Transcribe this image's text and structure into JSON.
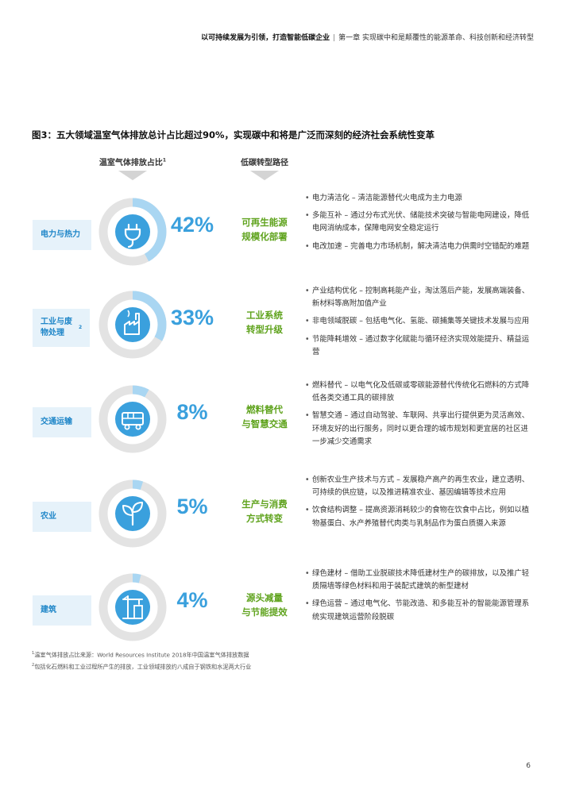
{
  "header": {
    "left": "以可持续发展为引领，打造智能低碳企业",
    "right": "第一章  实现碳中和是颠覆性的能源革命、科技创新和经济转型"
  },
  "figure_title": "图3：五大领域温室气体排放总计占比超过90%，实现碳中和将是广泛而深刻的经济社会系统性变革",
  "column_headers": {
    "share": "温室气体排放占比",
    "share_note": "1",
    "pathway": "低碳转型路径"
  },
  "rows": [
    {
      "sector": "电力与热力",
      "sector_note": "",
      "percent_label": "42%",
      "share": 42,
      "icon": "power-plug-icon",
      "pathway": [
        "可再生能源",
        "规模化部署"
      ],
      "bullets": [
        "电力清洁化 – 清洁能源替代火电成为主力电源",
        "多能互补 – 通过分布式光伏、储能技术突破与智能电网建设，降低电网消纳成本，保障电网安全稳定运行",
        "电改加速 – 完善电力市场机制，解决清洁电力供需时空错配的难题"
      ]
    },
    {
      "sector": "工业与废物处理",
      "sector_note": "2",
      "percent_label": "33%",
      "share": 33,
      "icon": "factory-icon",
      "pathway": [
        "工业系统",
        "转型升级"
      ],
      "bullets": [
        "产业结构优化 – 控制高耗能产业，淘汰落后产能，发展高端装备、新材料等高附加值产业",
        "非电领域脱碳 – 包括电气化、氢能、碳捕集等关键技术发展与应用",
        "节能降耗增效 – 通过数字化赋能与循环经济实现效能提升、精益运营"
      ]
    },
    {
      "sector": "交通运输",
      "sector_note": "",
      "percent_label": "8%",
      "share": 8,
      "icon": "bus-icon",
      "pathway": [
        "燃料替代",
        "与智慧交通"
      ],
      "bullets": [
        "燃料替代 – 以电气化及低碳或零碳能源替代传统化石燃料的方式降低各类交通工具的碳排放",
        "智慧交通 – 通过自动驾驶、车联网、共享出行提供更为灵活高效、环境友好的出行服务，同时以更合理的城市规划和更宜居的社区进一步减少交通需求"
      ]
    },
    {
      "sector": "农业",
      "sector_note": "",
      "percent_label": "5%",
      "share": 5,
      "icon": "sprout-icon",
      "pathway": [
        "生产与消费",
        "方式转变"
      ],
      "bullets": [
        "创新农业生产技术与方式 – 发展稳产高产的再生农业，建立透明、可持续的供应链，以及推进精准农业、基因编辑等技术应用",
        "饮食结构调整 – 提高资源消耗较少的食物在饮食中占比，例如以植物基蛋白、水产养殖替代肉类与乳制品作为蛋白质摄入来源"
      ]
    },
    {
      "sector": "建筑",
      "sector_note": "",
      "percent_label": "4%",
      "share": 4,
      "icon": "crane-building-icon",
      "pathway": [
        "源头减量",
        "与节能提效"
      ],
      "bullets": [
        "绿色建材 – 借助工业脱碳技术降低建材生产的碳排放，以及推广轻质隔墙等绿色材料和用于装配式建筑的新型建材",
        "绿色运营 – 通过电气化、节能改造、和多能互补的智能能源管理系统实现建筑运营阶段脱碳"
      ]
    }
  ],
  "footnotes": [
    {
      "mark": "1",
      "text": "温室气体排放占比来源：World Resources Institute 2018年中国温室气体排放数据"
    },
    {
      "mark": "2",
      "text": "包括化石燃料和工业过程所产生的排放，工业领域排放约八成自于钢铁和水泥两大行业"
    }
  ],
  "page_number": "6",
  "colors": {
    "accent_blue": "#3aa0dd",
    "donut_track": "#e3e3e3",
    "donut_fill": "#a9d6f2",
    "pathway_green": "#5fa31d",
    "sector_bg": "#e6f2fa"
  }
}
